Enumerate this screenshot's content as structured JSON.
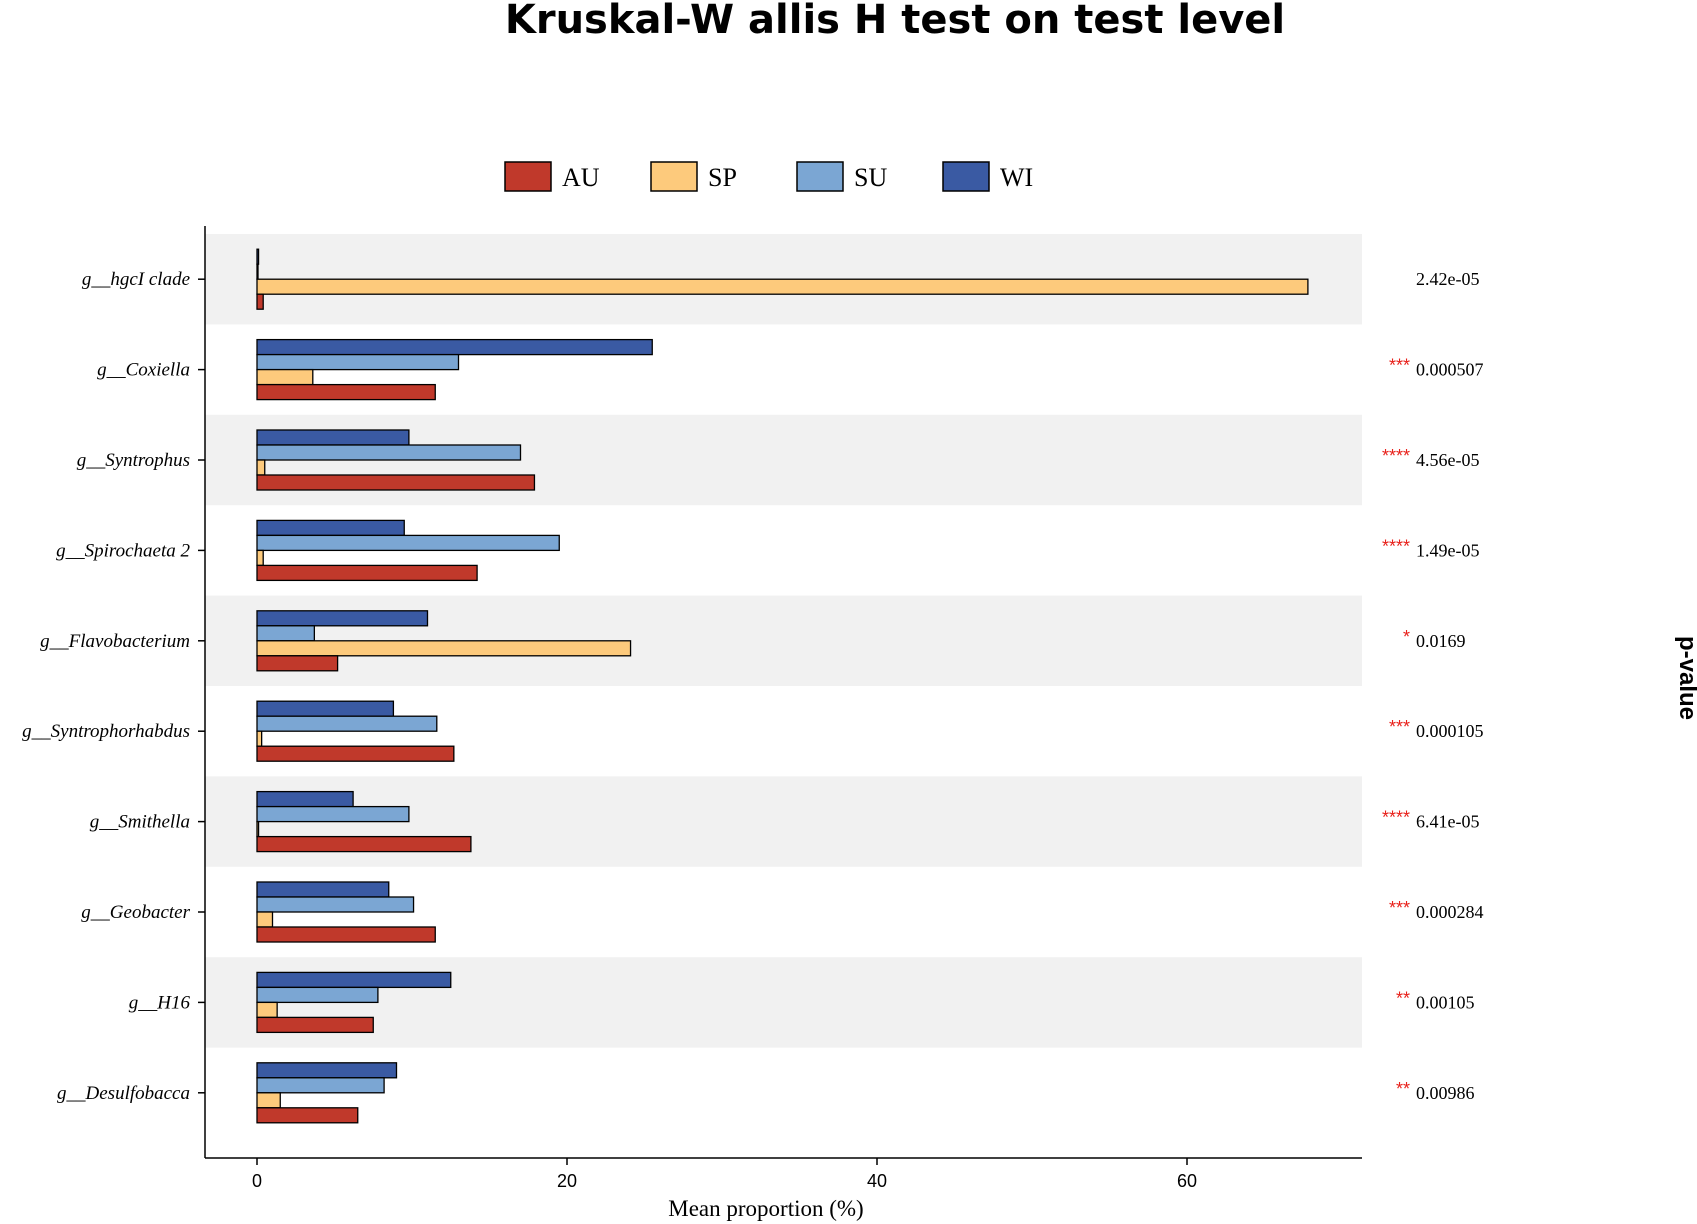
{
  "chart_data": {
    "type": "bar",
    "orientation": "horizontal",
    "title": "Kruskal-W allis H test on test level",
    "xlabel": "Mean proportion (%)",
    "right_label": "p-value",
    "xlim": [
      0,
      70
    ],
    "xticks": [
      0,
      20,
      40,
      60
    ],
    "legend": [
      "AU",
      "SP",
      "SU",
      "WI"
    ],
    "legend_position": "top",
    "colors": {
      "AU": "#c0392b",
      "SP": "#fdca7c",
      "SU": "#7ba6d3",
      "WI": "#3a5aa3"
    },
    "categories": [
      "g__hgcI clade",
      "g__Coxiella",
      "g__Syntrophus",
      "g__Spirochaeta 2",
      "g__Flavobacterium",
      "g__Syntrophorhabdus",
      "g__Smithella",
      "g__Geobacter",
      "g__H16",
      "g__Desulfobacca"
    ],
    "series": [
      {
        "name": "WI",
        "values": [
          0.1,
          25.5,
          9.8,
          9.5,
          11.0,
          8.8,
          6.2,
          8.5,
          12.5,
          9.0
        ]
      },
      {
        "name": "SU",
        "values": [
          0.05,
          13.0,
          17.0,
          19.5,
          3.7,
          11.6,
          9.8,
          10.1,
          7.8,
          8.2
        ]
      },
      {
        "name": "SP",
        "values": [
          67.8,
          3.6,
          0.5,
          0.4,
          24.1,
          0.3,
          0.1,
          1.0,
          1.3,
          1.5
        ]
      },
      {
        "name": "AU",
        "values": [
          0.4,
          11.5,
          17.9,
          14.2,
          5.2,
          12.7,
          13.8,
          11.5,
          7.5,
          6.5
        ]
      }
    ],
    "pvalues": [
      "2.42e-05",
      "0.000507",
      "4.56e-05",
      "1.49e-05",
      "0.0169",
      "0.000105",
      "6.41e-05",
      "0.000284",
      "0.00105",
      "0.00986"
    ],
    "stars": [
      "",
      "***",
      "****",
      "****",
      "*",
      "***",
      "****",
      "***",
      "**",
      "**"
    ],
    "shading": "alternating gray rows"
  }
}
